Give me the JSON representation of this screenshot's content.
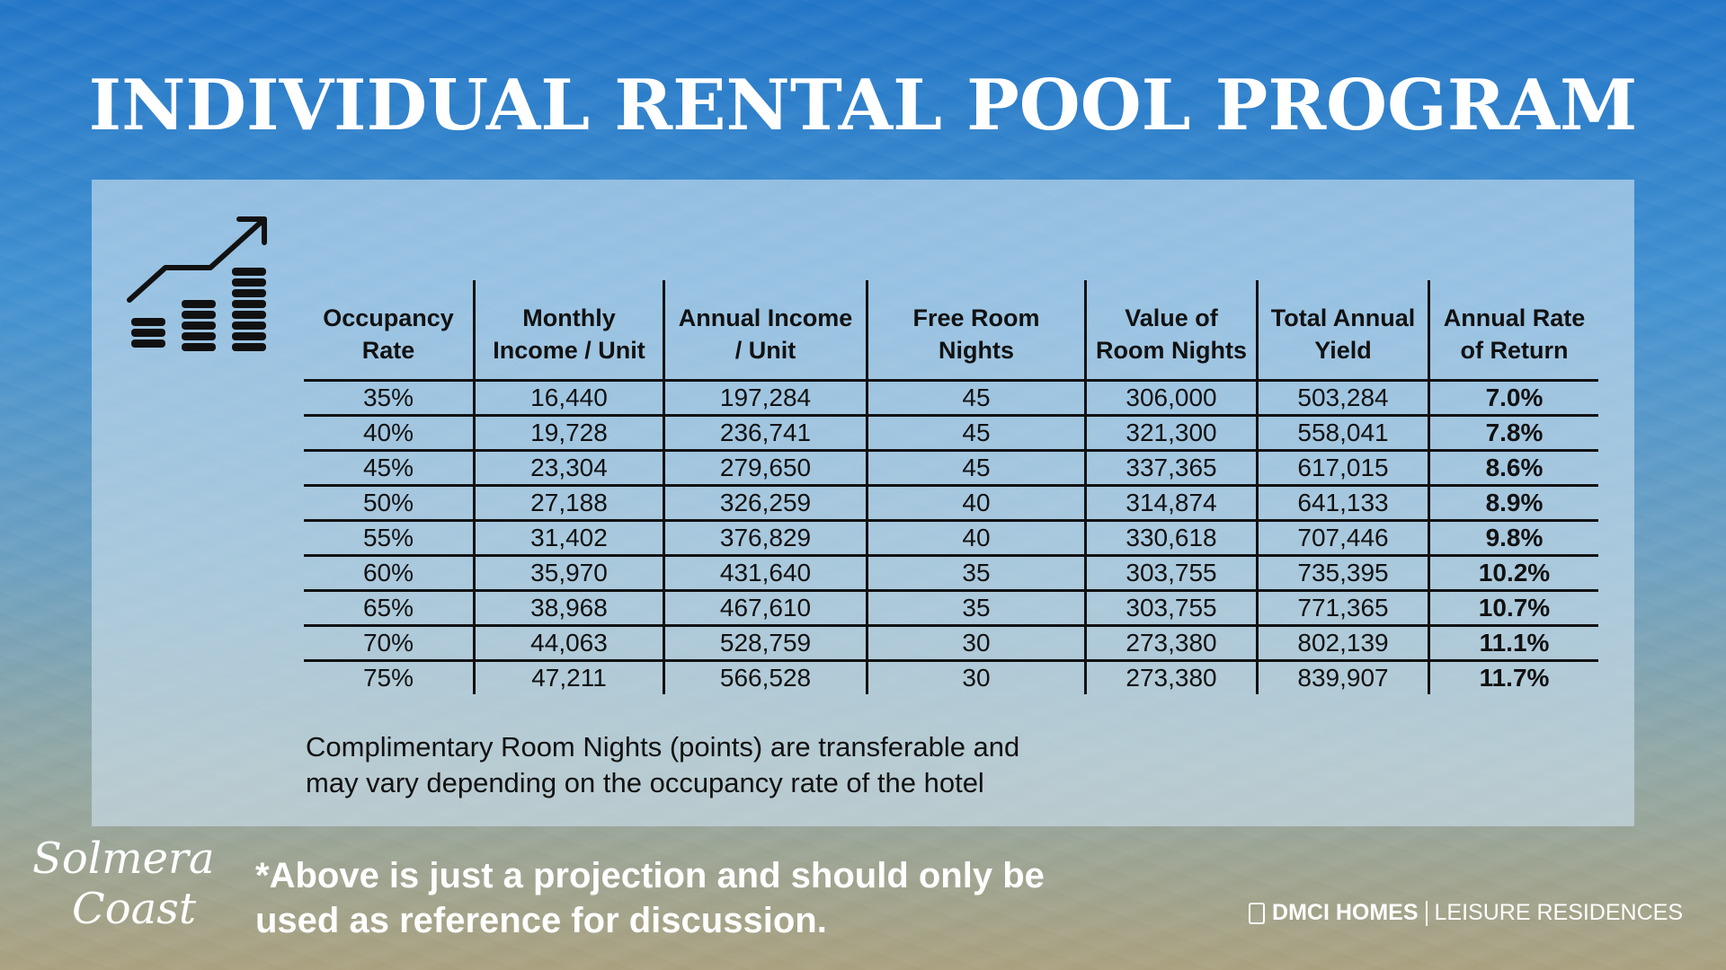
{
  "title": "INDIVIDUAL RENTAL POOL PROGRAM",
  "icons": {
    "chart": "growth-coins-icon",
    "brand": "dmci-logo-icon"
  },
  "table": {
    "headers": [
      [
        "Occupancy",
        "Rate"
      ],
      [
        "Monthly",
        "Income / Unit"
      ],
      [
        "Annual Income",
        "/ Unit"
      ],
      [
        "Free Room",
        "Nights"
      ],
      [
        "Value of",
        "Room Nights"
      ],
      [
        "Total Annual",
        "Yield"
      ],
      [
        "Annual Rate",
        "of Return"
      ]
    ],
    "rows": [
      [
        "35%",
        "16,440",
        "197,284",
        "45",
        "306,000",
        "503,284",
        "7.0%"
      ],
      [
        "40%",
        "19,728",
        "236,741",
        "45",
        "321,300",
        "558,041",
        "7.8%"
      ],
      [
        "45%",
        "23,304",
        "279,650",
        "45",
        "337,365",
        "617,015",
        "8.6%"
      ],
      [
        "50%",
        "27,188",
        "326,259",
        "40",
        "314,874",
        "641,133",
        "8.9%"
      ],
      [
        "55%",
        "31,402",
        "376,829",
        "40",
        "330,618",
        "707,446",
        "9.8%"
      ],
      [
        "60%",
        "35,970",
        "431,640",
        "35",
        "303,755",
        "735,395",
        "10.2%"
      ],
      [
        "65%",
        "38,968",
        "467,610",
        "35",
        "303,755",
        "771,365",
        "10.7%"
      ],
      [
        "70%",
        "44,063",
        "528,759",
        "30",
        "273,380",
        "802,139",
        "11.1%"
      ],
      [
        "75%",
        "47,211",
        "566,528",
        "30",
        "273,380",
        "839,907",
        "11.7%"
      ]
    ]
  },
  "note": {
    "line1": "Complimentary Room Nights (points) are transferable and",
    "line2": "may vary depending on the occupancy rate of the hotel"
  },
  "footer": {
    "logo_line1": "Solmera",
    "logo_line2": "Coast",
    "disclaimer_line1": "*Above is just a projection and should only be",
    "disclaimer_line2": "used as reference for discussion.",
    "brand_left": "DMCI HOMES",
    "brand_right": "LEISURE RESIDENCES"
  }
}
